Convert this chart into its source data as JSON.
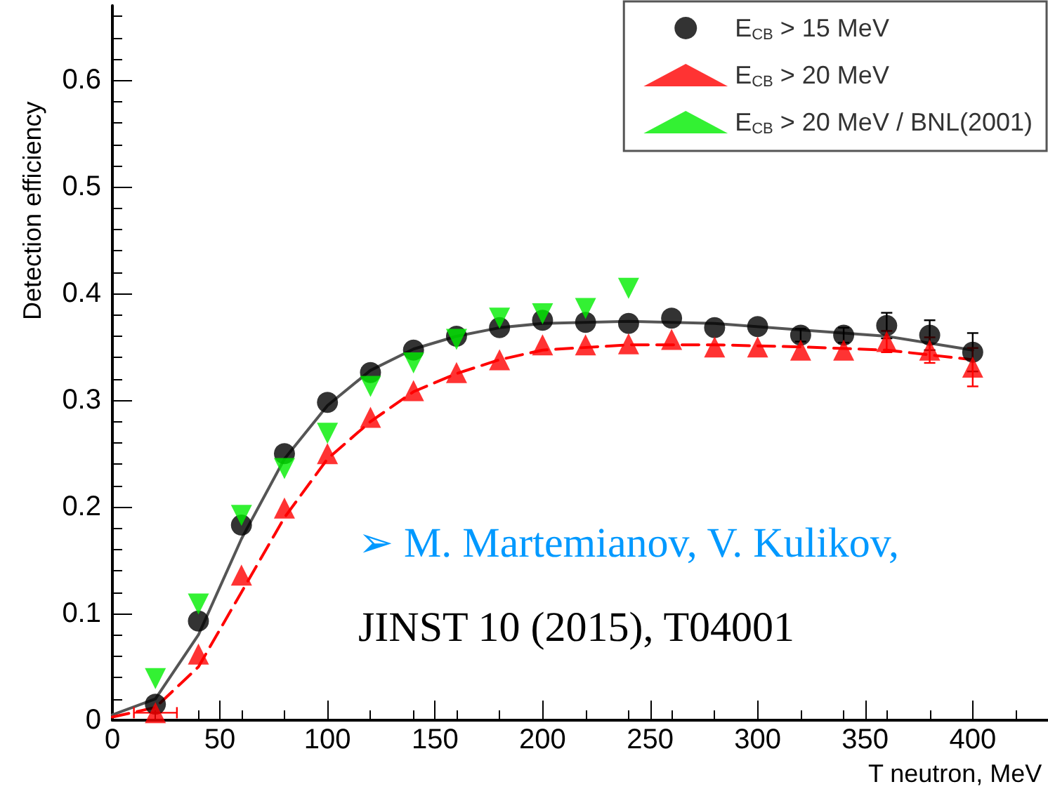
{
  "chart_data": {
    "type": "scatter",
    "xlabel": "T neutron, MeV",
    "ylabel": "Detection efficiency",
    "xlim": [
      0,
      435
    ],
    "xticks": [
      0,
      50,
      100,
      150,
      200,
      250,
      300,
      350,
      400
    ],
    "ylim": [
      0,
      0.67
    ],
    "yticks": [
      0,
      0.1,
      0.2,
      0.3,
      0.4,
      0.5,
      0.6
    ],
    "legend": "top right",
    "grid": false,
    "annotations": [
      "➢ M. Martemianov, V. Kulikov,",
      "JINST 10 (2015), T04001"
    ],
    "series": [
      {
        "name": "E$_{CB}$ > 15 MeV",
        "color": "#000000",
        "marker": "circle",
        "x": [
          20,
          40,
          60,
          80,
          100,
          120,
          140,
          160,
          180,
          200,
          220,
          240,
          260,
          280,
          300,
          320,
          340,
          360,
          380,
          400
        ],
        "values": [
          0.015,
          0.093,
          0.183,
          0.25,
          0.298,
          0.326,
          0.347,
          0.36,
          0.368,
          0.375,
          0.373,
          0.372,
          0.377,
          0.368,
          0.369,
          0.361,
          0.361,
          0.37,
          0.361,
          0.345
        ],
        "errors": [
          null,
          null,
          null,
          null,
          null,
          null,
          null,
          null,
          null,
          null,
          null,
          null,
          null,
          null,
          null,
          0.006,
          0.007,
          0.012,
          0.014,
          0.018
        ]
      },
      {
        "name": "E$_{CB}$ > 20 MeV",
        "color": "#ff0000",
        "marker": "triangle",
        "x": [
          20,
          40,
          60,
          80,
          100,
          120,
          140,
          160,
          180,
          200,
          220,
          240,
          260,
          280,
          300,
          320,
          340,
          360,
          380,
          400
        ],
        "values": [
          0.007,
          0.062,
          0.136,
          0.199,
          0.25,
          0.284,
          0.309,
          0.326,
          0.338,
          0.352,
          0.352,
          0.353,
          0.357,
          0.35,
          0.35,
          0.347,
          0.347,
          0.355,
          0.347,
          0.331
        ],
        "errors": [
          null,
          null,
          null,
          null,
          null,
          null,
          null,
          null,
          null,
          null,
          null,
          null,
          null,
          null,
          null,
          null,
          null,
          0.01,
          0.012,
          0.018
        ],
        "xerrors": [
          10,
          null,
          null,
          null,
          null,
          null,
          null,
          null,
          null,
          null,
          null,
          null,
          null,
          null,
          null,
          null,
          null,
          null,
          null,
          null
        ]
      },
      {
        "name": "E$_{CB}$ > 20 MeV / BNL(2001)",
        "color": "#00ee00",
        "marker": "triangle-down",
        "x": [
          20,
          40,
          60,
          80,
          100,
          120,
          140,
          160,
          180,
          200,
          220,
          240
        ],
        "values": [
          0.039,
          0.109,
          0.192,
          0.236,
          0.269,
          0.313,
          0.335,
          0.357,
          0.377,
          0.381,
          0.386,
          0.405
        ]
      },
      {
        "type": "line",
        "color": "#555555",
        "marker": "none",
        "line_style": "solid",
        "x": [
          0,
          20,
          40,
          50,
          60,
          80,
          100,
          120,
          140,
          160,
          180,
          200,
          240,
          280,
          320,
          360,
          400
        ],
        "values": [
          0.005,
          0.02,
          0.08,
          0.125,
          0.17,
          0.245,
          0.295,
          0.328,
          0.348,
          0.36,
          0.368,
          0.372,
          0.374,
          0.372,
          0.366,
          0.36,
          0.347
        ]
      },
      {
        "type": "line",
        "color": "#ff0000",
        "marker": "none",
        "line_style": "dashed",
        "x": [
          0,
          20,
          40,
          60,
          80,
          100,
          120,
          140,
          160,
          180,
          200,
          240,
          280,
          320,
          360,
          400
        ],
        "values": [
          0.003,
          0.012,
          0.05,
          0.12,
          0.19,
          0.245,
          0.28,
          0.308,
          0.325,
          0.338,
          0.347,
          0.352,
          0.352,
          0.35,
          0.347,
          0.338
        ]
      }
    ]
  }
}
